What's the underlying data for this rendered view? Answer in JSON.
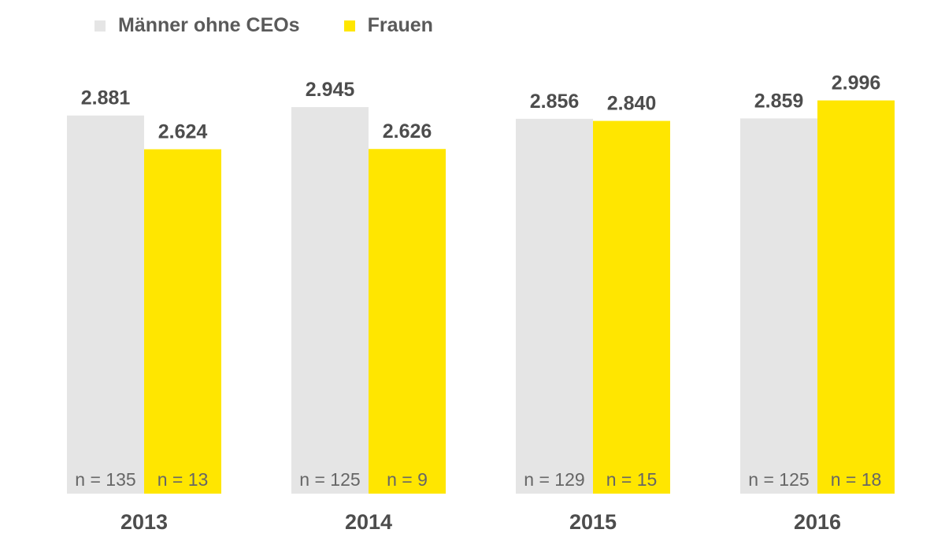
{
  "chart_data": {
    "type": "bar",
    "categories": [
      "2013",
      "2014",
      "2015",
      "2016"
    ],
    "series": [
      {
        "name": "Männer ohne CEOs",
        "color": "#e5e5e5",
        "values": [
          2881,
          2945,
          2856,
          2859
        ],
        "value_labels": [
          "2.881",
          "2.945",
          "2.856",
          "2.859"
        ],
        "n_labels": [
          "n = 135",
          "n = 125",
          "n = 129",
          "n = 125"
        ]
      },
      {
        "name": "Frauen",
        "color": "#ffe600",
        "values": [
          2624,
          2626,
          2840,
          2996
        ],
        "value_labels": [
          "2.624",
          "2.626",
          "2.840",
          "2.996"
        ],
        "n_labels": [
          "n = 13",
          "n = 9",
          "n = 15",
          "n = 18"
        ]
      }
    ],
    "ylim": [
      0,
      3600
    ],
    "grid": false,
    "legend_position": "top-left"
  }
}
